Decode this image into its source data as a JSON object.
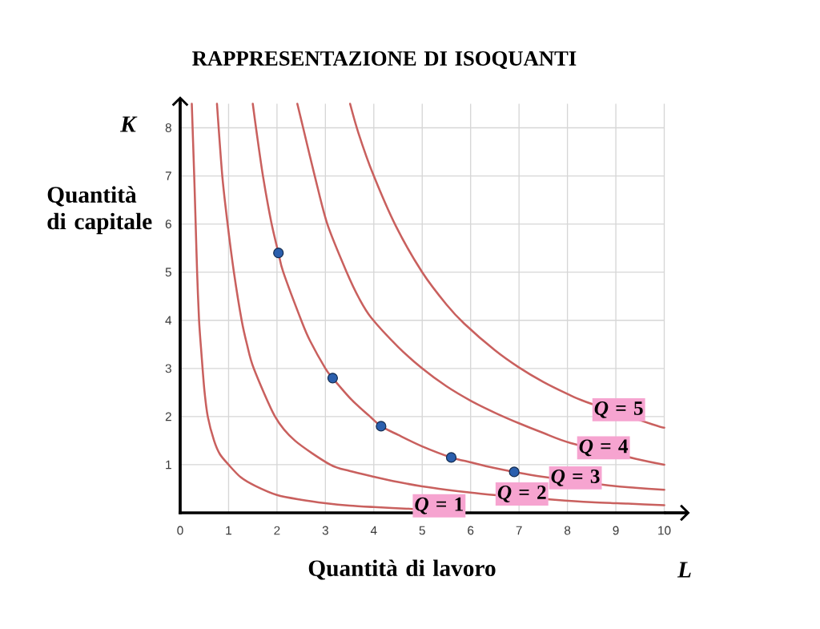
{
  "chart_data": {
    "type": "line",
    "title": "RAPPRESENTAZIONE DI ISOQUANTI",
    "xlabel": "Quantità di lavoro",
    "ylabel": "Quantità di capitale",
    "annotations": [
      "K",
      "L"
    ],
    "xlim": [
      0,
      10
    ],
    "ylim": [
      0,
      8.5
    ],
    "xticks": [
      0,
      1,
      2,
      3,
      4,
      5,
      6,
      7,
      8,
      9,
      10
    ],
    "yticks": [
      1,
      2,
      3,
      4,
      5,
      6,
      7,
      8
    ],
    "grid": true,
    "series": [
      {
        "name": "*Q* = 1",
        "color": "#c9605e",
        "x": [
          0.24,
          0.29,
          0.32,
          0.35,
          0.39,
          0.44,
          0.5,
          0.57,
          0.7,
          0.82,
          1,
          1.25,
          1.55,
          2,
          2.5,
          3,
          3.5,
          4,
          4.8
        ],
        "values": [
          8.5,
          7,
          6,
          5,
          4,
          3.3,
          2.55,
          2,
          1.5,
          1.22,
          1,
          0.74,
          0.56,
          0.37,
          0.27,
          0.2,
          0.15,
          0.12,
          0.08
        ]
      },
      {
        "name": "*Q* = 2",
        "color": "#c9605e",
        "x": [
          0.76,
          0.87,
          0.98,
          1.11,
          1.27,
          1.38,
          1.52,
          1.96,
          2.37,
          3.1,
          3.5,
          4,
          4.5,
          5,
          5.5,
          6,
          6.38,
          7.74,
          8.5,
          9.25,
          10
        ],
        "values": [
          8.5,
          7,
          6,
          5,
          4,
          3.5,
          3,
          2,
          1.5,
          1,
          0.87,
          0.75,
          0.64,
          0.55,
          0.48,
          0.42,
          0.38,
          0.27,
          0.22,
          0.19,
          0.16
        ]
      },
      {
        "name": "*Q* = 3",
        "color": "#c9605e",
        "x": [
          1.5,
          1.58,
          1.71,
          1.88,
          2.03,
          2.13,
          2.52,
          2.68,
          3,
          3.15,
          3.55,
          3.9,
          4.15,
          4.5,
          5,
          5.6,
          6,
          6.45,
          6.9,
          7.49,
          8.84,
          9.4,
          10
        ],
        "values": [
          8.5,
          7.9,
          7,
          6.05,
          5.4,
          5,
          3.95,
          3.58,
          3,
          2.8,
          2.34,
          2.02,
          1.8,
          1.62,
          1.38,
          1.15,
          1.05,
          0.94,
          0.85,
          0.75,
          0.57,
          0.52,
          0.48
        ]
      },
      {
        "name": "*Q* = 4",
        "color": "#c9605e",
        "x": [
          2.42,
          2.54,
          2.78,
          3.04,
          3.44,
          3.7,
          3.95,
          4.5,
          5,
          5.5,
          6,
          6.5,
          7,
          7.5,
          8.07,
          9.42,
          10
        ],
        "values": [
          8.5,
          8,
          7,
          6,
          5,
          4.45,
          4.05,
          3.45,
          3,
          2.63,
          2.33,
          2.08,
          1.86,
          1.66,
          1.45,
          1.12,
          1
        ]
      },
      {
        "name": "*Q* = 5",
        "color": "#c9605e",
        "x": [
          3.51,
          3.68,
          3.98,
          4.46,
          5,
          5.5,
          5.87,
          6.5,
          7,
          7.5,
          8,
          8.37,
          9.75,
          10
        ],
        "values": [
          8.5,
          7.9,
          7.05,
          5.95,
          5,
          4.33,
          3.93,
          3.38,
          3.02,
          2.72,
          2.47,
          2.31,
          1.84,
          1.77
        ]
      },
      {
        "type": "scatter",
        "color": "#2b5fad",
        "x": [
          2.03,
          3.15,
          4.15,
          5.6,
          6.9
        ],
        "values": [
          5.4,
          2.8,
          1.8,
          1.15,
          0.85
        ]
      }
    ]
  }
}
